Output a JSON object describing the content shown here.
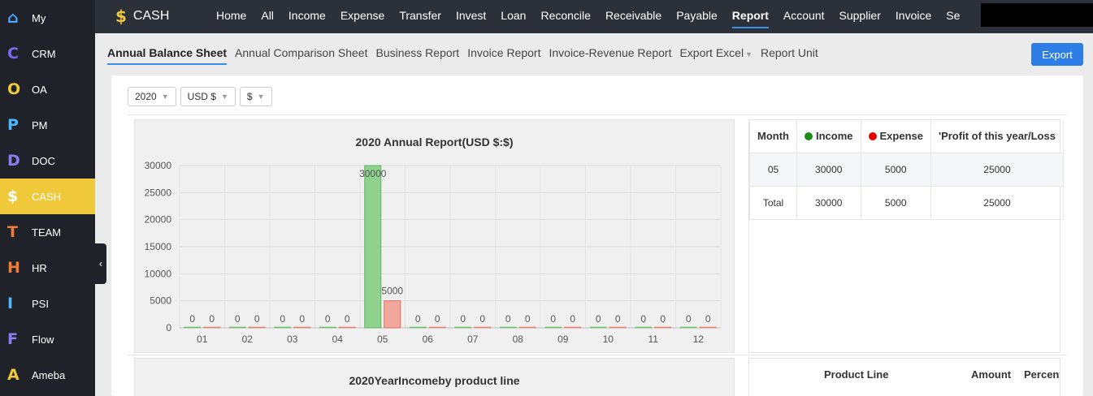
{
  "sidebar": {
    "items": [
      {
        "letter": "⌂",
        "label": "My",
        "color": "#4da6ff",
        "active": false
      },
      {
        "letter": "C",
        "label": "CRM",
        "color": "#7b68ee",
        "active": false
      },
      {
        "letter": "O",
        "label": "OA",
        "color": "#f0c93b",
        "active": false
      },
      {
        "letter": "P",
        "label": "PM",
        "color": "#4db8ff",
        "active": false
      },
      {
        "letter": "D",
        "label": "DOC",
        "color": "#8a7cf0",
        "active": false
      },
      {
        "letter": "$",
        "label": "CASH",
        "color": "#ffffff",
        "active": true
      },
      {
        "letter": "T",
        "label": "TEAM",
        "color": "#f07a3a",
        "active": false
      },
      {
        "letter": "H",
        "label": "HR",
        "color": "#f07a3a",
        "active": false
      },
      {
        "letter": "I",
        "label": "PSI",
        "color": "#4db8ff",
        "active": false
      },
      {
        "letter": "F",
        "label": "Flow",
        "color": "#8a7cf0",
        "active": false
      },
      {
        "letter": "A",
        "label": "Ameba",
        "color": "#f0c93b",
        "active": false
      }
    ],
    "collapse_icon": "‹"
  },
  "topbar": {
    "brand_icon": "$",
    "brand": "CASH",
    "nav": [
      "Home",
      "All",
      "Income",
      "Expense",
      "Transfer",
      "Invest",
      "Loan",
      "Reconcile",
      "Receivable",
      "Payable",
      "Report",
      "Account",
      "Supplier",
      "Invoice",
      "Se"
    ],
    "active_nav": "Report"
  },
  "subtabs": [
    {
      "label": "Annual Balance Sheet",
      "active": true,
      "dropdown": false
    },
    {
      "label": "Annual Comparison Sheet",
      "active": false,
      "dropdown": false
    },
    {
      "label": "Business Report",
      "active": false,
      "dropdown": false
    },
    {
      "label": "Invoice Report",
      "active": false,
      "dropdown": false
    },
    {
      "label": "Invoice-Revenue Report",
      "active": false,
      "dropdown": false
    },
    {
      "label": "Export Excel",
      "active": false,
      "dropdown": true
    },
    {
      "label": "Report Unit",
      "active": false,
      "dropdown": false
    }
  ],
  "export_label": "Export",
  "filters": {
    "year": "2020",
    "currency": "USD $",
    "unit": "$"
  },
  "chart_data": {
    "type": "bar",
    "title": "2020 Annual Report(USD $:$)",
    "categories": [
      "01",
      "02",
      "03",
      "04",
      "05",
      "06",
      "07",
      "08",
      "09",
      "10",
      "11",
      "12"
    ],
    "series": [
      {
        "name": "Income",
        "color": "#8fd18f",
        "values": [
          0,
          0,
          0,
          0,
          30000,
          0,
          0,
          0,
          0,
          0,
          0,
          0
        ]
      },
      {
        "name": "Expense",
        "color": "#f2a79c",
        "values": [
          0,
          0,
          0,
          0,
          5000,
          0,
          0,
          0,
          0,
          0,
          0,
          0
        ]
      }
    ],
    "yticks": [
      0,
      5000,
      10000,
      15000,
      20000,
      25000,
      30000
    ],
    "ylim": [
      0,
      30000
    ],
    "grid": true
  },
  "report_table": {
    "headers": [
      "Month",
      "Income",
      "Expense",
      "'Profit of this year/Loss"
    ],
    "income_dot_color": "#1a8c1a",
    "expense_dot_color": "#e60000",
    "rows": [
      [
        "05",
        "30000",
        "5000",
        "25000"
      ],
      [
        "Total",
        "30000",
        "5000",
        "25000"
      ]
    ]
  },
  "product_chart_title": "2020YearIncomeby product line",
  "product_table": {
    "headers": [
      "Product Line",
      "Amount",
      "Percent"
    ]
  }
}
